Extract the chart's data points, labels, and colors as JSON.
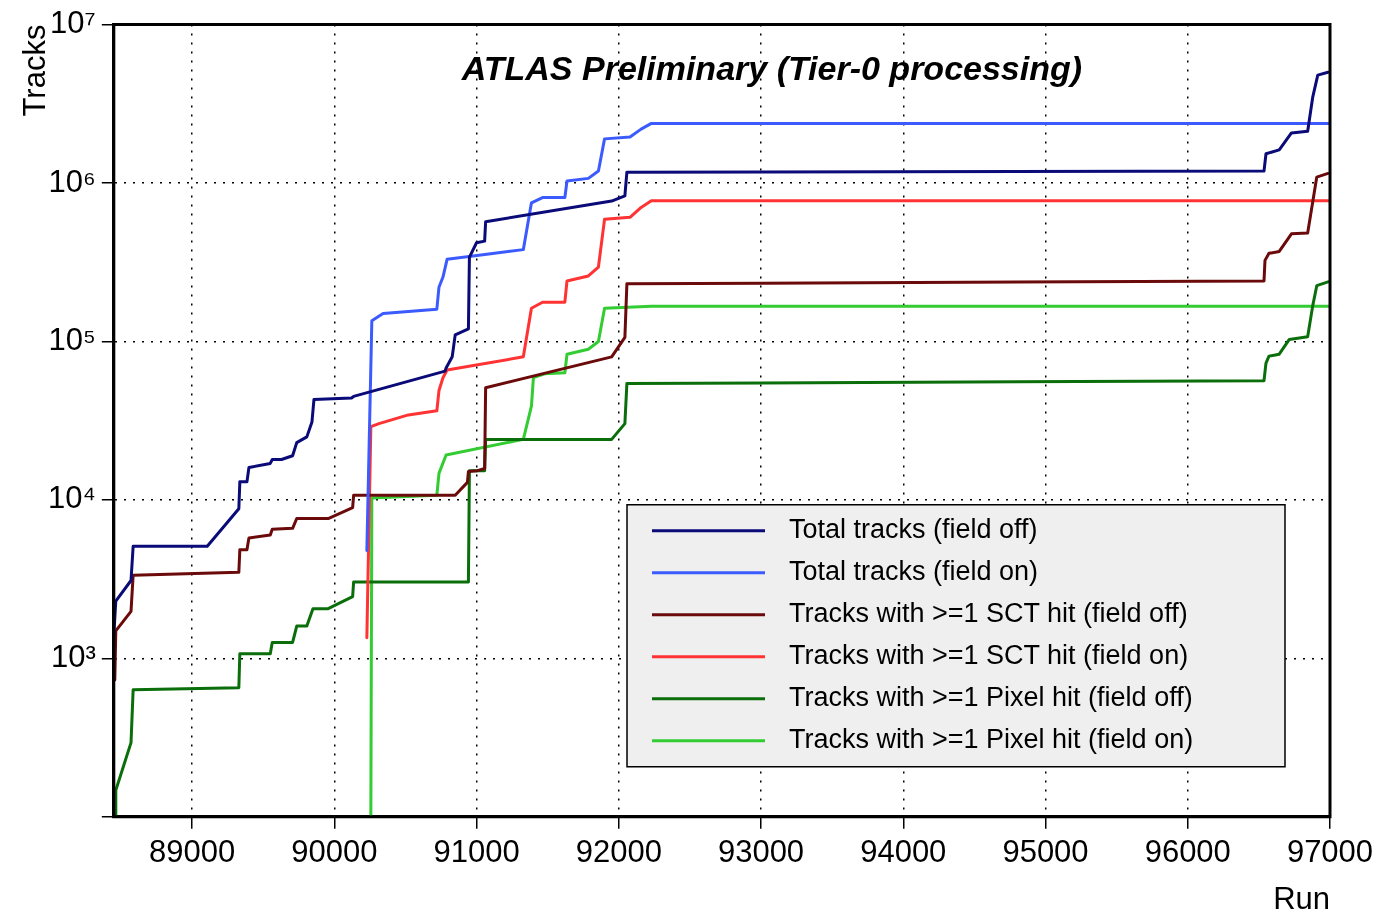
{
  "chart_data": {
    "type": "line",
    "title": "ATLAS Preliminary (Tier-0 processing)",
    "xlabel": "Run",
    "ylabel": "Tracks",
    "log": "y",
    "grid": true,
    "legend": "bottom right",
    "xlim": [
      88450,
      97000
    ],
    "xticks": [
      89000,
      90000,
      91000,
      92000,
      93000,
      94000,
      95000,
      96000,
      97000
    ],
    "ylim": [
      100,
      10000000
    ],
    "yticks": [
      {
        "value": 100,
        "label": null
      },
      {
        "value": 1000,
        "label": "10³"
      },
      {
        "value": 10000,
        "label": "10⁴"
      },
      {
        "value": 100000,
        "label": "10⁵"
      },
      {
        "value": 1000000,
        "label": "10⁶"
      },
      {
        "value": 10000000,
        "label": "10⁷"
      }
    ],
    "series": [
      {
        "name": "Total tracks (field off)",
        "color": "#0a0a78",
        "x": [
          88450,
          88464,
          88571,
          88586,
          89107,
          89329,
          89336,
          89386,
          89400,
          89550,
          89564,
          89629,
          89707,
          89736,
          89807,
          89843,
          89857,
          90121,
          90136,
          90779,
          90786,
          90829,
          90850,
          90943,
          90950,
          91000,
          91057,
          91064,
          91950,
          92043,
          92057,
          96536,
          96550,
          96643,
          96729,
          96843,
          96879,
          96914,
          96986
        ],
        "values": [
          1400,
          2300,
          3100,
          5100,
          5100,
          8800,
          13000,
          13000,
          16000,
          17000,
          18000,
          18000,
          19000,
          23000,
          25000,
          31000,
          43000,
          44000,
          45000,
          65000,
          68000,
          80000,
          110000,
          120000,
          340000,
          420000,
          430000,
          570000,
          770000,
          830000,
          1170000,
          1190000,
          1530000,
          1620000,
          2070000,
          2120000,
          3500000,
          4800000,
          5000000
        ]
      },
      {
        "name": "Total tracks (field on)",
        "color": "#3b5bff",
        "x": [
          90229,
          90264,
          90343,
          90721,
          90736,
          90764,
          90793,
          91329,
          91386,
          91464,
          91621,
          91636,
          91786,
          91857,
          91900,
          92079,
          92157,
          92229,
          97000
        ],
        "values": [
          4800,
          135000,
          150000,
          160000,
          220000,
          255000,
          330000,
          380000,
          750000,
          810000,
          810000,
          1030000,
          1070000,
          1190000,
          1900000,
          1950000,
          2190000,
          2380000,
          2380000
        ]
      },
      {
        "name": "Tracks with >=1 SCT hit (field off)",
        "color": "#6b0a0a",
        "x": [
          88457,
          88464,
          88571,
          88586,
          89329,
          89336,
          89386,
          89400,
          89550,
          89564,
          89707,
          89736,
          89957,
          90129,
          90136,
          90850,
          90936,
          90943,
          91007,
          91057,
          91064,
          91950,
          92043,
          92057,
          96536,
          96543,
          96571,
          96643,
          96729,
          96843,
          96879,
          96907,
          96986
        ],
        "values": [
          730,
          1490,
          1980,
          3350,
          3490,
          4840,
          4840,
          5750,
          6000,
          6530,
          6620,
          7630,
          7630,
          8930,
          10700,
          10700,
          12900,
          15100,
          15300,
          15800,
          51000,
          80000,
          106000,
          231000,
          241000,
          325000,
          360000,
          370000,
          478000,
          484000,
          764000,
          1090000,
          1150000
        ]
      },
      {
        "name": "Tracks with >=1 SCT hit (field on)",
        "color": "#ff3333",
        "x": [
          90229,
          90257,
          90314,
          90521,
          90721,
          90736,
          90764,
          90793,
          91329,
          91386,
          91464,
          91621,
          91636,
          91786,
          91857,
          91900,
          92079,
          92157,
          92229,
          97000
        ],
        "values": [
          1350,
          29000,
          30300,
          34400,
          36500,
          49000,
          59000,
          66000,
          80000,
          162000,
          177000,
          177000,
          241000,
          259000,
          295000,
          591000,
          608000,
          702000,
          774000,
          774000
        ]
      },
      {
        "name": "Tracks with >=1 Pixel hit (field off)",
        "color": "#0a6e0a",
        "x": [
          88464,
          88464,
          88571,
          88586,
          89329,
          89336,
          89550,
          89564,
          89707,
          89736,
          89807,
          89850,
          89957,
          90129,
          90136,
          90943,
          90950,
          91057,
          91064,
          91950,
          92043,
          92057,
          96536,
          96550,
          96571,
          96643,
          96714,
          96843,
          96879,
          96907,
          96986
        ],
        "values": [
          100,
          147,
          294,
          634,
          653,
          1070,
          1070,
          1260,
          1260,
          1600,
          1600,
          2060,
          2060,
          2450,
          3030,
          3030,
          15300,
          15300,
          24100,
          24100,
          30300,
          54300,
          56600,
          73100,
          80800,
          83100,
          103000,
          107000,
          169000,
          225000,
          238000
        ]
      },
      {
        "name": "Tracks with >=1 Pixel hit (field on)",
        "color": "#33cc33",
        "x": [
          90257,
          90264,
          90721,
          90736,
          90786,
          91329,
          91386,
          91400,
          91479,
          91621,
          91636,
          91786,
          91857,
          91900,
          92229,
          97000
        ],
        "values": [
          100,
          10300,
          10700,
          14700,
          19200,
          24100,
          39100,
          59100,
          62500,
          63500,
          83100,
          89300,
          100000,
          162000,
          167000,
          167000
        ]
      }
    ]
  }
}
